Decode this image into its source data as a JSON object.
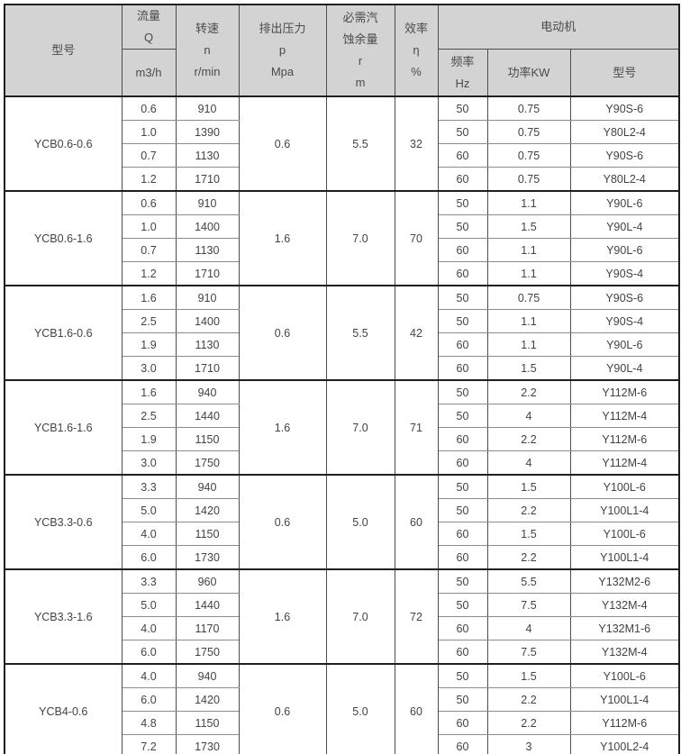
{
  "table": {
    "colors": {
      "header_bg": "#d3d3d3",
      "header_text": "#4a4a4a",
      "cell_text": "#434343",
      "border_dark": "#1f1f1f",
      "border_medium": "#4d4d4d",
      "border_light": "#8c8c8c"
    },
    "header": {
      "model_label": "型号",
      "flow_lines": [
        "流量",
        "Q"
      ],
      "flow_unit": "m3/h",
      "speed_lines": [
        "转速",
        "n",
        "r/min"
      ],
      "pressure_lines": [
        "排出压力",
        "p",
        "Mpa"
      ],
      "npsh_lines": [
        "必需汽",
        "蚀余量",
        "r",
        "m"
      ],
      "efficiency_lines": [
        "效率",
        "η",
        "%"
      ],
      "motor_label": "电动机",
      "freq_lines": [
        "频率",
        "Hz"
      ],
      "power_label": "功率KW",
      "motor_model_label": "型号"
    },
    "groups": [
      {
        "model": "YCB0.6-0.6",
        "pressure": "0.6",
        "npsh": "5.5",
        "efficiency": "32",
        "rows": [
          {
            "flow": "0.6",
            "speed": "910",
            "freq": "50",
            "power": "0.75",
            "motor": "Y90S-6"
          },
          {
            "flow": "1.0",
            "speed": "1390",
            "freq": "50",
            "power": "0.75",
            "motor": "Y80L2-4"
          },
          {
            "flow": "0.7",
            "speed": "1130",
            "freq": "60",
            "power": "0.75",
            "motor": "Y90S-6"
          },
          {
            "flow": "1.2",
            "speed": "1710",
            "freq": "60",
            "power": "0.75",
            "motor": "Y80L2-4"
          }
        ]
      },
      {
        "model": "YCB0.6-1.6",
        "pressure": "1.6",
        "npsh": "7.0",
        "efficiency": "70",
        "rows": [
          {
            "flow": "0.6",
            "speed": "910",
            "freq": "50",
            "power": "1.1",
            "motor": "Y90L-6"
          },
          {
            "flow": "1.0",
            "speed": "1400",
            "freq": "50",
            "power": "1.5",
            "motor": "Y90L-4"
          },
          {
            "flow": "0.7",
            "speed": "1130",
            "freq": "60",
            "power": "1.1",
            "motor": "Y90L-6"
          },
          {
            "flow": "1.2",
            "speed": "1710",
            "freq": "60",
            "power": "1.1",
            "motor": "Y90S-4"
          }
        ]
      },
      {
        "model": "YCB1.6-0.6",
        "pressure": "0.6",
        "npsh": "5.5",
        "efficiency": "42",
        "rows": [
          {
            "flow": "1.6",
            "speed": "910",
            "freq": "50",
            "power": "0.75",
            "motor": "Y90S-6"
          },
          {
            "flow": "2.5",
            "speed": "1400",
            "freq": "50",
            "power": "1.1",
            "motor": "Y90S-4"
          },
          {
            "flow": "1.9",
            "speed": "1130",
            "freq": "60",
            "power": "1.1",
            "motor": "Y90L-6"
          },
          {
            "flow": "3.0",
            "speed": "1710",
            "freq": "60",
            "power": "1.5",
            "motor": "Y90L-4"
          }
        ]
      },
      {
        "model": "YCB1.6-1.6",
        "pressure": "1.6",
        "npsh": "7.0",
        "efficiency": "71",
        "rows": [
          {
            "flow": "1.6",
            "speed": "940",
            "freq": "50",
            "power": "2.2",
            "motor": "Y112M-6"
          },
          {
            "flow": "2.5",
            "speed": "1440",
            "freq": "50",
            "power": "4",
            "motor": "Y112M-4"
          },
          {
            "flow": "1.9",
            "speed": "1150",
            "freq": "60",
            "power": "2.2",
            "motor": "Y112M-6"
          },
          {
            "flow": "3.0",
            "speed": "1750",
            "freq": "60",
            "power": "4",
            "motor": "Y112M-4"
          }
        ]
      },
      {
        "model": "YCB3.3-0.6",
        "pressure": "0.6",
        "npsh": "5.0",
        "efficiency": "60",
        "rows": [
          {
            "flow": "3.3",
            "speed": "940",
            "freq": "50",
            "power": "1.5",
            "motor": "Y100L-6"
          },
          {
            "flow": "5.0",
            "speed": "1420",
            "freq": "50",
            "power": "2.2",
            "motor": "Y100L1-4"
          },
          {
            "flow": "4.0",
            "speed": "1150",
            "freq": "60",
            "power": "1.5",
            "motor": "Y100L-6"
          },
          {
            "flow": "6.0",
            "speed": "1730",
            "freq": "60",
            "power": "2.2",
            "motor": "Y100L1-4"
          }
        ]
      },
      {
        "model": "YCB3.3-1.6",
        "pressure": "1.6",
        "npsh": "7.0",
        "efficiency": "72",
        "rows": [
          {
            "flow": "3.3",
            "speed": "960",
            "freq": "50",
            "power": "5.5",
            "motor": "Y132M2-6"
          },
          {
            "flow": "5.0",
            "speed": "1440",
            "freq": "50",
            "power": "7.5",
            "motor": "Y132M-4"
          },
          {
            "flow": "4.0",
            "speed": "1170",
            "freq": "60",
            "power": "4",
            "motor": "Y132M1-6"
          },
          {
            "flow": "6.0",
            "speed": "1750",
            "freq": "60",
            "power": "7.5",
            "motor": "Y132M-4"
          }
        ]
      },
      {
        "model": "YCB4-0.6",
        "pressure": "0.6",
        "npsh": "5.0",
        "efficiency": "60",
        "rows": [
          {
            "flow": "4.0",
            "speed": "940",
            "freq": "50",
            "power": "1.5",
            "motor": "Y100L-6"
          },
          {
            "flow": "6.0",
            "speed": "1420",
            "freq": "50",
            "power": "2.2",
            "motor": "Y100L1-4"
          },
          {
            "flow": "4.8",
            "speed": "1150",
            "freq": "60",
            "power": "2.2",
            "motor": "Y112M-6"
          },
          {
            "flow": "7.2",
            "speed": "1730",
            "freq": "60",
            "power": "3",
            "motor": "Y100L2-4"
          }
        ]
      }
    ]
  }
}
